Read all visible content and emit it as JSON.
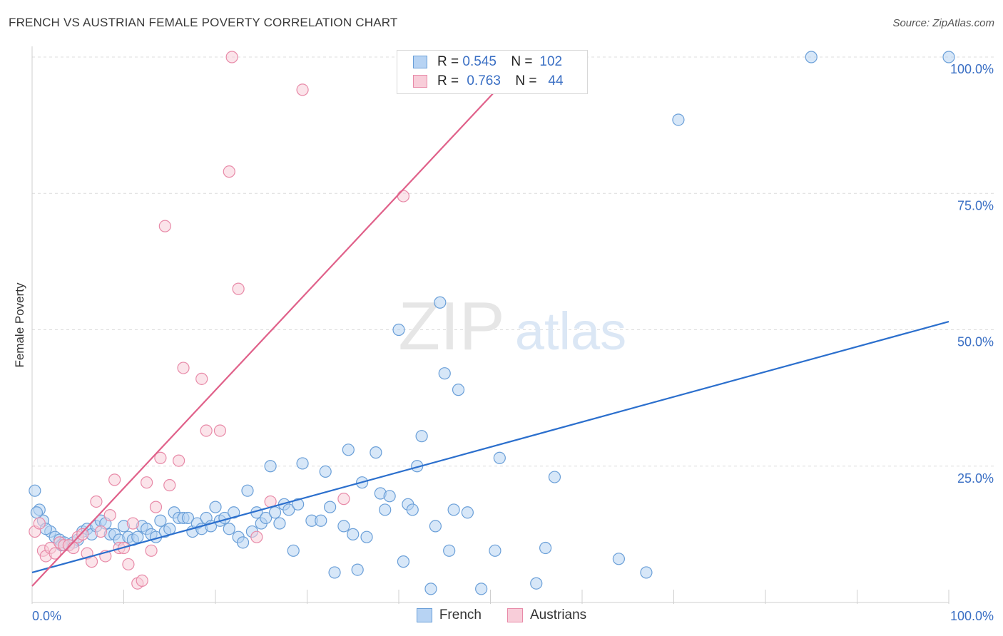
{
  "title": "FRENCH VS AUSTRIAN FEMALE POVERTY CORRELATION CHART",
  "source": "Source: ZipAtlas.com",
  "watermark": {
    "zip": "ZIP",
    "atlas": "atlas"
  },
  "legend": {
    "rows": [
      {
        "r_label": "R =",
        "r_value": "0.545",
        "n_label": "N =",
        "n_value": "102",
        "color": "#9ec3ee",
        "border": "#6a9fd8"
      },
      {
        "r_label": "R =",
        "r_value": "0.763",
        "n_label": "N =",
        "n_value": "44",
        "color": "#f6bccd",
        "border": "#e88aa8"
      }
    ]
  },
  "bottom_legend": [
    {
      "label": "French",
      "color": "#b7d3f3",
      "border": "#6a9fd8"
    },
    {
      "label": "Austrians",
      "color": "#f8cdd9",
      "border": "#e88aa8"
    }
  ],
  "chart_data": {
    "type": "scatter",
    "xlabel": "",
    "ylabel": "Female Poverty",
    "xlim": [
      0,
      100
    ],
    "ylim": [
      0,
      100
    ],
    "x_tick_labels": [
      "0.0%",
      "100.0%"
    ],
    "y_tick_labels": [
      "25.0%",
      "50.0%",
      "75.0%",
      "100.0%"
    ],
    "y_ticks": [
      25,
      50,
      75,
      100
    ],
    "grid": true,
    "series": [
      {
        "name": "French",
        "color": "#6a9fd8",
        "fill": "#b7d3f3",
        "trend_color": "#2b6fcd",
        "trend": [
          [
            0,
            5.5
          ],
          [
            100,
            51.5
          ]
        ],
        "points": [
          [
            0.3,
            20.5
          ],
          [
            0.8,
            17
          ],
          [
            1.2,
            15
          ],
          [
            2,
            13
          ],
          [
            2.5,
            12
          ],
          [
            3,
            11.5
          ],
          [
            3.5,
            11
          ],
          [
            4,
            10.5
          ],
          [
            4.5,
            11
          ],
          [
            5,
            11.5
          ],
          [
            5.5,
            13
          ],
          [
            6,
            13.5
          ],
          [
            6.5,
            12.5
          ],
          [
            7,
            14
          ],
          [
            7.5,
            15
          ],
          [
            8,
            14.5
          ],
          [
            8.5,
            12.5
          ],
          [
            9,
            12.5
          ],
          [
            9.5,
            11.5
          ],
          [
            10,
            14
          ],
          [
            10.5,
            12
          ],
          [
            11,
            11.5
          ],
          [
            11.5,
            12
          ],
          [
            12,
            14
          ],
          [
            12.5,
            13.5
          ],
          [
            13,
            12.5
          ],
          [
            13.5,
            12
          ],
          [
            14,
            15
          ],
          [
            14.5,
            13
          ],
          [
            15,
            13.5
          ],
          [
            15.5,
            16.5
          ],
          [
            16,
            15.5
          ],
          [
            16.5,
            15.5
          ],
          [
            17,
            15.5
          ],
          [
            17.5,
            13
          ],
          [
            18,
            14.5
          ],
          [
            18.5,
            13.5
          ],
          [
            19,
            15.5
          ],
          [
            19.5,
            14
          ],
          [
            20,
            17.5
          ],
          [
            20.5,
            15
          ],
          [
            21,
            15.5
          ],
          [
            21.5,
            13.5
          ],
          [
            22,
            16.5
          ],
          [
            22.5,
            12
          ],
          [
            23,
            11
          ],
          [
            23.5,
            20.5
          ],
          [
            24,
            13
          ],
          [
            24.5,
            16.5
          ],
          [
            25,
            14.5
          ],
          [
            25.5,
            15.5
          ],
          [
            26,
            25
          ],
          [
            26.5,
            16.5
          ],
          [
            27,
            14.5
          ],
          [
            27.5,
            18
          ],
          [
            28,
            17
          ],
          [
            28.5,
            9.5
          ],
          [
            29,
            18
          ],
          [
            29.5,
            25.5
          ],
          [
            30.5,
            15
          ],
          [
            31.5,
            15
          ],
          [
            32,
            24
          ],
          [
            32.5,
            17.5
          ],
          [
            33,
            5.5
          ],
          [
            34,
            14
          ],
          [
            34.5,
            28
          ],
          [
            35,
            12.5
          ],
          [
            35.5,
            6
          ],
          [
            36,
            22
          ],
          [
            36.5,
            12
          ],
          [
            37.5,
            27.5
          ],
          [
            38,
            20
          ],
          [
            38.5,
            17
          ],
          [
            39,
            19.5
          ],
          [
            40,
            50
          ],
          [
            40.5,
            7.5
          ],
          [
            41,
            18
          ],
          [
            41.5,
            17
          ],
          [
            42,
            25
          ],
          [
            42.5,
            30.5
          ],
          [
            43.5,
            2.5
          ],
          [
            44,
            14
          ],
          [
            44.5,
            55
          ],
          [
            45,
            42
          ],
          [
            45.5,
            9.5
          ],
          [
            46,
            17
          ],
          [
            46.5,
            39
          ],
          [
            47.5,
            16.5
          ],
          [
            49,
            2.5
          ],
          [
            50.5,
            9.5
          ],
          [
            51,
            26.5
          ],
          [
            55,
            3.5
          ],
          [
            56,
            10
          ],
          [
            57,
            23
          ],
          [
            64,
            8
          ],
          [
            67,
            5.5
          ],
          [
            70.5,
            88.5
          ],
          [
            85,
            100
          ],
          [
            100,
            100
          ],
          [
            0.5,
            16.5
          ],
          [
            1.5,
            13.5
          ],
          [
            3.2,
            10.5
          ]
        ]
      },
      {
        "name": "Austrians",
        "color": "#e88aa8",
        "fill": "#f8cdd9",
        "trend_color": "#e0618a",
        "trend": [
          [
            0,
            3
          ],
          [
            54,
            100
          ]
        ],
        "points": [
          [
            0.3,
            13
          ],
          [
            0.8,
            14.5
          ],
          [
            1.2,
            9.5
          ],
          [
            1.5,
            8.5
          ],
          [
            2,
            10
          ],
          [
            2.5,
            9
          ],
          [
            3,
            11
          ],
          [
            3.5,
            10.5
          ],
          [
            4,
            10.5
          ],
          [
            4.5,
            10
          ],
          [
            5,
            12
          ],
          [
            5.5,
            12.5
          ],
          [
            6,
            9
          ],
          [
            6.5,
            7.5
          ],
          [
            7,
            18.5
          ],
          [
            7.5,
            13
          ],
          [
            8,
            8.5
          ],
          [
            8.5,
            16
          ],
          [
            9,
            22.5
          ],
          [
            9.5,
            10
          ],
          [
            10,
            10
          ],
          [
            10.5,
            7
          ],
          [
            11,
            14.5
          ],
          [
            11.5,
            3.5
          ],
          [
            12,
            4
          ],
          [
            12.5,
            22
          ],
          [
            13,
            9.5
          ],
          [
            13.5,
            17.5
          ],
          [
            14,
            26.5
          ],
          [
            14.5,
            69
          ],
          [
            15,
            21.5
          ],
          [
            16,
            26
          ],
          [
            16.5,
            43
          ],
          [
            18.5,
            41
          ],
          [
            19,
            31.5
          ],
          [
            20.5,
            31.5
          ],
          [
            21.5,
            79
          ],
          [
            21.8,
            100
          ],
          [
            22.5,
            57.5
          ],
          [
            24.5,
            12
          ],
          [
            26,
            18.5
          ],
          [
            29.5,
            94
          ],
          [
            34,
            19
          ],
          [
            40.5,
            74.5
          ]
        ]
      }
    ]
  }
}
